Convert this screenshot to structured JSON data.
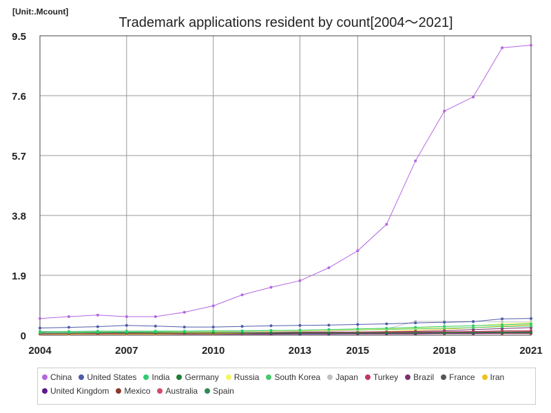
{
  "chart_data": {
    "type": "line",
    "title": "Trademark applications resident by count[2004～2021]",
    "unit_label": "[Unit:.Mcount]",
    "x": [
      2004,
      2005,
      2006,
      2007,
      2008,
      2009,
      2010,
      2011,
      2012,
      2013,
      2014,
      2015,
      2016,
      2017,
      2018,
      2019,
      2020,
      2021
    ],
    "x_ticks": [
      "2004",
      "2007",
      "2010",
      "2013",
      "2015",
      "2018",
      "2021"
    ],
    "y_ticks": [
      "0",
      "1.9",
      "3.8",
      "5.7",
      "7.6",
      "9.5"
    ],
    "ylim": [
      0,
      9.5
    ],
    "grid": true,
    "legend_position": "bottom",
    "series": [
      {
        "name": "China",
        "color": "#b366e0",
        "values": [
          0.53,
          0.59,
          0.64,
          0.59,
          0.59,
          0.73,
          0.93,
          1.28,
          1.52,
          1.73,
          2.14,
          2.68,
          3.52,
          5.53,
          7.11,
          7.56,
          9.12,
          9.2
        ]
      },
      {
        "name": "United States",
        "color": "#4e5ba8",
        "values": [
          0.23,
          0.25,
          0.27,
          0.31,
          0.29,
          0.26,
          0.26,
          0.28,
          0.3,
          0.31,
          0.32,
          0.34,
          0.36,
          0.39,
          0.41,
          0.43,
          0.52,
          0.53
        ]
      },
      {
        "name": "India",
        "color": "#2ecc71",
        "values": [
          0.08,
          0.09,
          0.1,
          0.1,
          0.11,
          0.12,
          0.13,
          0.13,
          0.15,
          0.16,
          0.18,
          0.2,
          0.22,
          0.25,
          0.28,
          0.3,
          0.33,
          0.36
        ]
      },
      {
        "name": "Germany",
        "color": "#1e7d32",
        "values": [
          0.07,
          0.07,
          0.07,
          0.07,
          0.07,
          0.07,
          0.07,
          0.07,
          0.07,
          0.07,
          0.07,
          0.07,
          0.07,
          0.07,
          0.07,
          0.08,
          0.08,
          0.08
        ]
      },
      {
        "name": "Russia",
        "color": "#f5f560",
        "values": [
          0.07,
          0.08,
          0.09,
          0.1,
          0.1,
          0.1,
          0.11,
          0.12,
          0.13,
          0.14,
          0.16,
          0.18,
          0.2,
          0.23,
          0.27,
          0.3,
          0.36,
          0.39
        ]
      },
      {
        "name": "South Korea",
        "color": "#45c96b",
        "values": [
          0.12,
          0.12,
          0.13,
          0.13,
          0.13,
          0.13,
          0.14,
          0.14,
          0.15,
          0.15,
          0.16,
          0.17,
          0.18,
          0.2,
          0.22,
          0.24,
          0.27,
          0.29
        ]
      },
      {
        "name": "Japan",
        "color": "#c0c0c0",
        "values": [
          0.12,
          0.12,
          0.12,
          0.11,
          0.11,
          0.1,
          0.1,
          0.1,
          0.11,
          0.12,
          0.13,
          0.16,
          0.2,
          0.44,
          0.44,
          0.44,
          0.42,
          0.42
        ]
      },
      {
        "name": "Turkey",
        "color": "#c0395e",
        "values": [
          0.04,
          0.05,
          0.05,
          0.06,
          0.06,
          0.06,
          0.07,
          0.08,
          0.08,
          0.08,
          0.09,
          0.1,
          0.1,
          0.1,
          0.11,
          0.12,
          0.14,
          0.15
        ]
      },
      {
        "name": "Brazil",
        "color": "#7b3070",
        "values": [
          0.09,
          0.08,
          0.08,
          0.08,
          0.08,
          0.08,
          0.09,
          0.1,
          0.1,
          0.1,
          0.1,
          0.1,
          0.11,
          0.12,
          0.14,
          0.18,
          0.21,
          0.24
        ]
      },
      {
        "name": "France",
        "color": "#555555",
        "values": [
          0.08,
          0.08,
          0.08,
          0.08,
          0.08,
          0.08,
          0.08,
          0.08,
          0.08,
          0.08,
          0.08,
          0.08,
          0.09,
          0.09,
          0.09,
          0.09,
          0.1,
          0.1
        ]
      },
      {
        "name": "Iran",
        "color": "#f0c020",
        "values": [
          0.03,
          0.03,
          0.04,
          0.04,
          0.04,
          0.05,
          0.05,
          0.06,
          0.07,
          0.08,
          0.09,
          0.1,
          0.12,
          0.15,
          0.19,
          0.24,
          0.29,
          0.33
        ]
      },
      {
        "name": "United Kingdom",
        "color": "#5a1a8a",
        "values": [
          0.04,
          0.04,
          0.04,
          0.04,
          0.04,
          0.04,
          0.04,
          0.04,
          0.04,
          0.04,
          0.04,
          0.05,
          0.05,
          0.05,
          0.06,
          0.06,
          0.07,
          0.07
        ]
      },
      {
        "name": "Mexico",
        "color": "#8b3a2a",
        "values": [
          0.04,
          0.04,
          0.05,
          0.05,
          0.05,
          0.05,
          0.05,
          0.06,
          0.06,
          0.07,
          0.07,
          0.08,
          0.08,
          0.09,
          0.09,
          0.1,
          0.11,
          0.12
        ]
      },
      {
        "name": "Australia",
        "color": "#d44a6a",
        "values": [
          0.03,
          0.03,
          0.03,
          0.03,
          0.03,
          0.03,
          0.03,
          0.03,
          0.03,
          0.04,
          0.04,
          0.04,
          0.04,
          0.04,
          0.05,
          0.05,
          0.05,
          0.05
        ]
      },
      {
        "name": "Spain",
        "color": "#2e8b57",
        "values": [
          0.05,
          0.05,
          0.05,
          0.05,
          0.05,
          0.05,
          0.05,
          0.05,
          0.05,
          0.05,
          0.05,
          0.05,
          0.05,
          0.05,
          0.05,
          0.05,
          0.06,
          0.06
        ]
      }
    ]
  }
}
